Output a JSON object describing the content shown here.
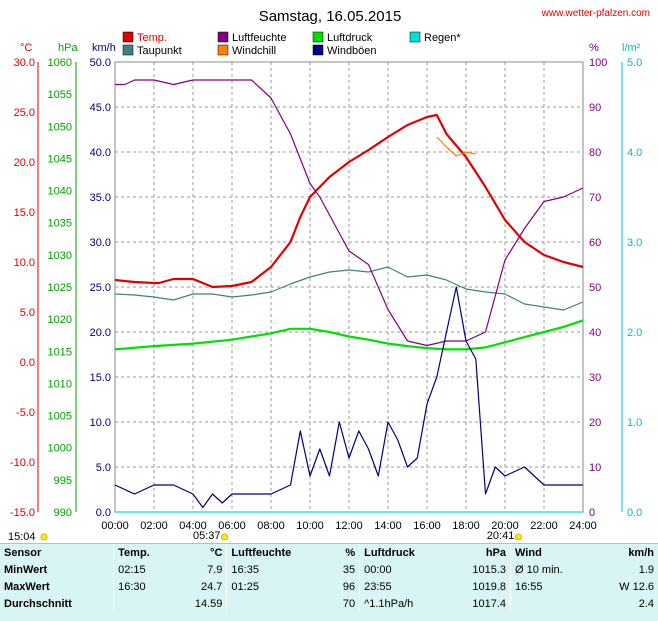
{
  "title": "Samstag, 16.05.2015",
  "site": "www.wetter-pfalzen.com",
  "legend": [
    {
      "label": "Temp.",
      "color": "#e00000"
    },
    {
      "label": "Luftfeuchte",
      "color": "#800080"
    },
    {
      "label": "Luftdruck",
      "color": "#00e000"
    },
    {
      "label": "Regen*",
      "color": "#00e0e0"
    },
    {
      "label": "Taupunkt",
      "color": "#408080"
    },
    {
      "label": "Windchill",
      "color": "#ff8000"
    },
    {
      "label": "Windböen",
      "color": "#000080"
    }
  ],
  "axis_units": {
    "temp": "°C",
    "pressure": "hPa",
    "wind": "km/h",
    "humidity": "%",
    "rain": "l/m²"
  },
  "sun": {
    "sunrise": "05:37",
    "sunset": "20:41",
    "left_marker": "15:04"
  },
  "chart_data": {
    "type": "line",
    "x_ticks": [
      "00:00",
      "02:00",
      "04:00",
      "06:00",
      "08:00",
      "10:00",
      "12:00",
      "14:00",
      "16:00",
      "18:00",
      "20:00",
      "22:00",
      "24:00"
    ],
    "xlim": [
      0,
      24
    ],
    "axes": {
      "temp": {
        "ylim": [
          -15,
          30
        ],
        "ticks": [
          "30.0",
          "25.0",
          "20.0",
          "15.0",
          "10.0",
          "5.0",
          "0.0",
          "-5.0",
          "-10.0",
          "-15.0"
        ]
      },
      "pressure": {
        "ylim": [
          990,
          1060
        ],
        "ticks": [
          "1060",
          "1055",
          "1050",
          "1045",
          "1040",
          "1035",
          "1030",
          "1025",
          "1020",
          "1015",
          "1010",
          "1005",
          "1000",
          "995",
          "990"
        ]
      },
      "wind": {
        "ylim": [
          0,
          50
        ],
        "ticks": [
          "50.0",
          "45.0",
          "40.0",
          "35.0",
          "30.0",
          "25.0",
          "20.0",
          "15.0",
          "10.0",
          "5.0",
          "0.0"
        ]
      },
      "humidity": {
        "ylim": [
          0,
          100
        ],
        "ticks": [
          "100",
          "90",
          "80",
          "70",
          "60",
          "50",
          "40",
          "30",
          "20",
          "10",
          "0"
        ]
      },
      "rain": {
        "ylim": [
          0,
          5
        ],
        "ticks": [
          "5.0",
          "4.0",
          "3.0",
          "2.0",
          "1.0",
          "0.0"
        ]
      }
    },
    "series": [
      {
        "name": "Temp.",
        "axis": "temp",
        "color": "#e00000",
        "x": [
          0,
          1,
          2,
          2.25,
          3,
          4,
          5,
          6,
          7,
          8,
          9,
          9.5,
          10,
          11,
          12,
          13,
          14,
          15,
          16,
          16.5,
          17,
          18,
          19,
          20,
          21,
          22,
          23,
          24
        ],
        "y": [
          8.2,
          8.0,
          7.9,
          7.9,
          8.3,
          8.3,
          7.5,
          7.6,
          8.0,
          9.5,
          12.0,
          14.5,
          16.5,
          18.5,
          20.0,
          21.2,
          22.5,
          23.7,
          24.5,
          24.7,
          22.8,
          20.5,
          17.5,
          14.2,
          12.0,
          10.7,
          10.0,
          9.5
        ]
      },
      {
        "name": "Taupunkt",
        "axis": "temp",
        "color": "#408080",
        "x": [
          0,
          1,
          2,
          3,
          4,
          5,
          6,
          7,
          8,
          9,
          10,
          11,
          12,
          13,
          14,
          15,
          16,
          17,
          18,
          19,
          20,
          21,
          22,
          23,
          24
        ],
        "y": [
          6.8,
          6.7,
          6.5,
          6.2,
          6.8,
          6.8,
          6.5,
          6.7,
          7.0,
          7.8,
          8.5,
          9.0,
          9.2,
          9.0,
          9.5,
          8.5,
          8.7,
          8.2,
          7.3,
          7.0,
          6.8,
          5.8,
          5.5,
          5.2,
          6.0
        ]
      },
      {
        "name": "Windchill",
        "axis": "temp",
        "color": "#ff8000",
        "x": [
          16.5,
          17,
          17.5,
          18,
          18.5
        ],
        "y": [
          22.5,
          21.5,
          20.6,
          21.0,
          20.8
        ]
      },
      {
        "name": "Luftfeuchte",
        "axis": "humidity",
        "color": "#800080",
        "x": [
          0,
          0.5,
          1,
          1.25,
          2,
          3,
          4,
          5,
          6,
          7,
          8,
          9,
          10,
          10.5,
          11,
          12,
          13,
          14,
          15,
          16,
          17,
          18,
          19,
          20,
          21,
          22,
          23,
          24
        ],
        "y": [
          95,
          95,
          96,
          96,
          96,
          95,
          96,
          96,
          96,
          96,
          92,
          84,
          73,
          70,
          66,
          58,
          55,
          45,
          38,
          37,
          38,
          38,
          40,
          56,
          63,
          69,
          70,
          72
        ]
      },
      {
        "name": "Luftdruck",
        "axis": "pressure",
        "color": "#00e000",
        "x": [
          0,
          2,
          4,
          6,
          8,
          9,
          10,
          11,
          12,
          13,
          14,
          15,
          16,
          17,
          18,
          19,
          20,
          21,
          22,
          23,
          24
        ],
        "y": [
          1015.3,
          1015.8,
          1016.2,
          1016.8,
          1017.8,
          1018.5,
          1018.5,
          1018.0,
          1017.3,
          1016.8,
          1016.2,
          1015.8,
          1015.5,
          1015.3,
          1015.3,
          1015.6,
          1016.4,
          1017.2,
          1018.0,
          1018.8,
          1019.8
        ]
      },
      {
        "name": "Windböen",
        "axis": "wind",
        "color": "#000080",
        "x": [
          0,
          1,
          2,
          3,
          4,
          4.5,
          5,
          5.5,
          6,
          7,
          8,
          9,
          9.5,
          10,
          10.5,
          11,
          11.5,
          12,
          12.5,
          13,
          13.5,
          14,
          14.5,
          15,
          15.5,
          16,
          16.5,
          17,
          17.5,
          18,
          18.5,
          19,
          19.5,
          20,
          21,
          22,
          23,
          24
        ],
        "y": [
          3,
          2,
          3,
          3,
          2,
          0.5,
          2,
          1,
          2,
          2,
          2,
          3,
          9,
          4,
          7,
          4,
          10,
          6,
          9,
          7,
          4,
          10,
          8,
          5,
          6,
          12,
          15,
          20,
          25,
          19,
          17,
          2,
          5,
          4,
          5,
          3,
          3,
          3
        ]
      },
      {
        "name": "Regen*",
        "axis": "rain",
        "color": "#00e0e0",
        "x": [
          0,
          24
        ],
        "y": [
          0,
          0
        ]
      }
    ]
  },
  "summary": {
    "headers": {
      "sensor": "Sensor",
      "temp": "Temp.",
      "temp_unit": "°C",
      "hum": "Luftfeuchte",
      "hum_unit": "%",
      "press": "Luftdruck",
      "press_unit": "hPa",
      "wind": "Wind",
      "wind_unit": "km/h"
    },
    "rows": [
      {
        "label": "MinWert",
        "t_time": "02:15",
        "t_val": "7.9",
        "h_time": "16:35",
        "h_val": "35",
        "p_time": "00:00",
        "p_val": "1015.3",
        "w_time": "Ø 10 min.",
        "w_val": "1.9"
      },
      {
        "label": "MaxWert",
        "t_time": "16:30",
        "t_val": "24.7",
        "h_time": "01:25",
        "h_val": "96",
        "p_time": "23:55",
        "p_val": "1019.8",
        "w_time": "16:55",
        "w_val": "W 12.6"
      },
      {
        "label": "Durchschnitt",
        "t_time": "",
        "t_val": "14.59",
        "h_time": "",
        "h_val": "70",
        "p_time": "^1.1hPa/h",
        "p_val": "1017.4",
        "w_time": "",
        "w_val": "2.4"
      }
    ]
  }
}
